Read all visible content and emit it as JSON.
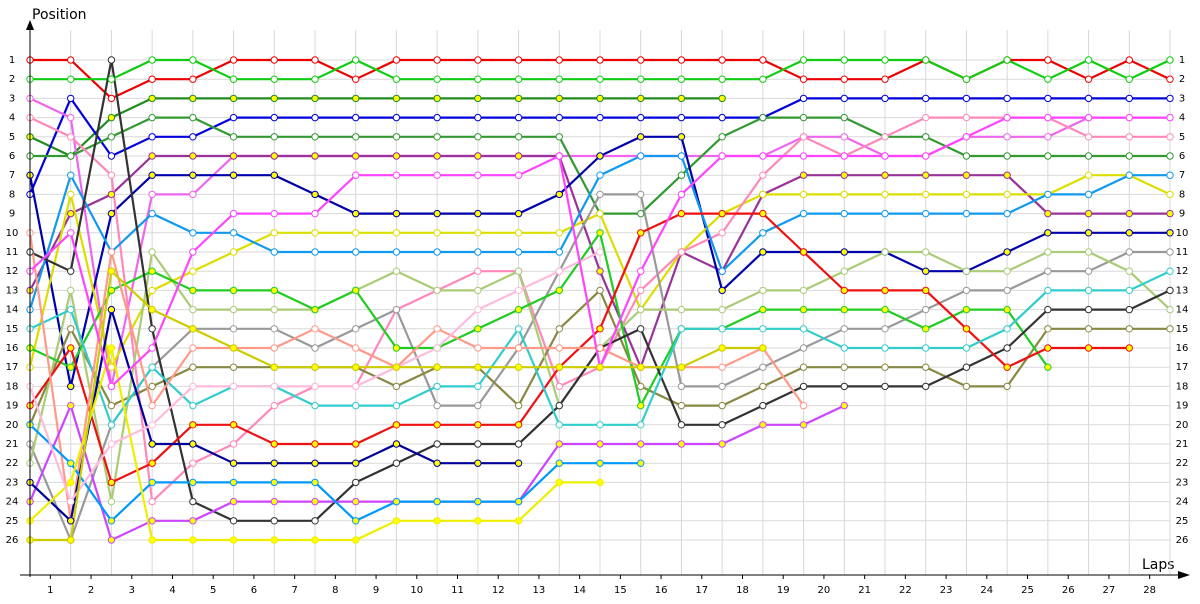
{
  "chart_data": {
    "type": "line",
    "y_label": "Position",
    "x_label": "Laps",
    "x": [
      0,
      1,
      2,
      3,
      4,
      5,
      6,
      7,
      8,
      9,
      10,
      11,
      12,
      13,
      14,
      15,
      16,
      17,
      18,
      19,
      20,
      21,
      22,
      23,
      24,
      25,
      26,
      27,
      28
    ],
    "xlim": [
      0,
      28
    ],
    "xticks": [
      1,
      2,
      3,
      4,
      5,
      6,
      7,
      8,
      9,
      10,
      11,
      12,
      13,
      14,
      15,
      16,
      17,
      18,
      19,
      20,
      21,
      22,
      23,
      24,
      25,
      26,
      27,
      28
    ],
    "ylim": [
      1,
      26
    ],
    "yticks": [
      1,
      2,
      3,
      4,
      5,
      6,
      7,
      8,
      9,
      10,
      11,
      12,
      13,
      14,
      15,
      16,
      17,
      18,
      19,
      20,
      21,
      22,
      23,
      24,
      25,
      26
    ],
    "y_inverted": true,
    "grid": true,
    "series": [
      {
        "color": "#ee0000",
        "marker": "#ffffff",
        "values": [
          1,
          1,
          3,
          2,
          2,
          1,
          1,
          1,
          2,
          1,
          1,
          1,
          1,
          1,
          1,
          1,
          1,
          1,
          1,
          2,
          2,
          2,
          1,
          2,
          1,
          1,
          2,
          1,
          2
        ]
      },
      {
        "color": "#11cc11",
        "marker": "#ffffff",
        "values": [
          2,
          2,
          2,
          1,
          1,
          2,
          2,
          2,
          1,
          2,
          2,
          2,
          2,
          2,
          2,
          2,
          2,
          2,
          2,
          1,
          1,
          1,
          1,
          2,
          1,
          2,
          1,
          2,
          1
        ]
      },
      {
        "color": "#228b22",
        "marker": "#ffff00",
        "values": [
          5,
          6,
          4,
          3,
          3,
          3,
          3,
          3,
          3,
          3,
          3,
          3,
          3,
          3,
          3,
          3,
          3,
          3,
          null,
          null,
          null,
          null,
          null,
          null,
          null,
          null,
          null,
          null,
          null
        ]
      },
      {
        "color": "#0000dd",
        "marker": "#ffffff",
        "values": [
          8,
          3,
          6,
          5,
          5,
          4,
          4,
          4,
          4,
          4,
          4,
          4,
          4,
          4,
          4,
          4,
          4,
          4,
          4,
          3,
          3,
          3,
          3,
          3,
          3,
          3,
          3,
          3,
          3
        ]
      },
      {
        "color": "#ee66ee",
        "marker": "#ffffff",
        "values": [
          3,
          4,
          18,
          8,
          8,
          6,
          6,
          6,
          6,
          6,
          6,
          6,
          6,
          6,
          6,
          6,
          6,
          6,
          6,
          5,
          5,
          6,
          6,
          5,
          5,
          5,
          4,
          4,
          4
        ]
      },
      {
        "color": "#339933",
        "marker": "#ffffff",
        "values": [
          6,
          6,
          5,
          4,
          4,
          5,
          5,
          5,
          5,
          5,
          5,
          5,
          5,
          5,
          9,
          9,
          7,
          5,
          4,
          4,
          4,
          5,
          5,
          6,
          6,
          6,
          6,
          6,
          6
        ]
      },
      {
        "color": "#993399",
        "marker": "#ffff00",
        "values": [
          13,
          9,
          8,
          6,
          6,
          6,
          6,
          6,
          6,
          6,
          6,
          6,
          6,
          6,
          12,
          17,
          11,
          12,
          8,
          7,
          7,
          7,
          7,
          7,
          7,
          9,
          9,
          9,
          9
        ]
      },
      {
        "color": "#0000aa",
        "marker": "#ffff00",
        "values": [
          7,
          18,
          9,
          7,
          7,
          7,
          7,
          8,
          9,
          9,
          9,
          9,
          9,
          8,
          6,
          5,
          5,
          13,
          11,
          11,
          11,
          11,
          12,
          12,
          11,
          10,
          10,
          10,
          10
        ]
      },
      {
        "color": "#dddd00",
        "marker": "#ffffff",
        "values": [
          17,
          8,
          17,
          13,
          12,
          11,
          10,
          10,
          10,
          10,
          10,
          10,
          10,
          10,
          9,
          14,
          11,
          9,
          8,
          8,
          8,
          8,
          8,
          8,
          8,
          8,
          7,
          7,
          8
        ]
      },
      {
        "color": "#ff88bb",
        "marker": "#ffffff",
        "values": [
          4,
          5,
          7,
          24,
          22,
          21,
          19,
          18,
          18,
          14,
          13,
          12,
          12,
          18,
          17,
          13,
          11,
          10,
          7,
          5,
          6,
          5,
          4,
          4,
          4,
          4,
          5,
          5,
          5
        ]
      },
      {
        "color": "#1199ee",
        "marker": "#ffffff",
        "values": [
          14,
          7,
          11,
          9,
          10,
          10,
          11,
          11,
          11,
          11,
          11,
          11,
          11,
          11,
          7,
          6,
          6,
          12,
          10,
          9,
          9,
          9,
          9,
          9,
          9,
          8,
          8,
          7,
          7
        ]
      },
      {
        "color": "#999999",
        "marker": "#ffffff",
        "values": [
          21,
          26,
          20,
          17,
          15,
          15,
          15,
          16,
          15,
          14,
          19,
          19,
          16,
          12,
          8,
          8,
          18,
          18,
          17,
          16,
          15,
          15,
          14,
          13,
          13,
          12,
          12,
          11,
          11
        ]
      },
      {
        "color": "#888844",
        "marker": "#ffffff",
        "values": [
          20,
          15,
          19,
          18,
          17,
          17,
          17,
          17,
          17,
          18,
          17,
          17,
          19,
          15,
          13,
          18,
          19,
          19,
          18,
          17,
          17,
          17,
          17,
          18,
          18,
          15,
          15,
          15,
          15
        ]
      },
      {
        "color": "#aacc77",
        "marker": "#ffffff",
        "values": [
          22,
          13,
          24,
          11,
          14,
          14,
          14,
          14,
          13,
          12,
          13,
          13,
          12,
          19,
          16,
          14,
          14,
          14,
          13,
          13,
          12,
          11,
          11,
          12,
          12,
          11,
          11,
          12,
          14
        ]
      },
      {
        "color": "#22cc22",
        "marker": "#ffff00",
        "values": [
          16,
          17,
          13,
          12,
          13,
          13,
          13,
          14,
          13,
          16,
          16,
          15,
          14,
          13,
          10,
          19,
          15,
          15,
          14,
          14,
          14,
          14,
          15,
          14,
          14,
          17,
          null,
          null,
          null
        ]
      },
      {
        "color": "#333333",
        "marker": "#ffffff",
        "values": [
          11,
          12,
          1,
          15,
          24,
          25,
          25,
          25,
          23,
          22,
          21,
          21,
          21,
          19,
          16,
          15,
          20,
          20,
          19,
          18,
          18,
          18,
          18,
          17,
          16,
          14,
          14,
          14,
          13
        ]
      },
      {
        "color": "#ee1111",
        "marker": "#ffff00",
        "values": [
          19,
          16,
          23,
          22,
          20,
          20,
          21,
          21,
          21,
          20,
          20,
          20,
          20,
          17,
          15,
          10,
          9,
          9,
          9,
          11,
          13,
          13,
          13,
          15,
          17,
          16,
          16,
          16,
          null
        ]
      },
      {
        "color": "#33cccc",
        "marker": "#ffffff",
        "values": [
          15,
          14,
          20,
          17,
          19,
          18,
          18,
          19,
          19,
          19,
          18,
          18,
          15,
          20,
          20,
          20,
          15,
          15,
          15,
          15,
          16,
          16,
          16,
          16,
          15,
          13,
          13,
          13,
          12
        ]
      },
      {
        "color": "#ff9988",
        "marker": "#ffffff",
        "values": [
          10,
          25,
          11,
          19,
          16,
          16,
          16,
          15,
          16,
          17,
          15,
          16,
          16,
          16,
          16,
          17,
          17,
          17,
          16,
          19,
          null,
          null,
          null,
          null,
          null,
          null,
          null,
          null,
          null
        ]
      },
      {
        "color": "#cc44ff",
        "marker": "#ffff00",
        "values": [
          24,
          19,
          26,
          25,
          25,
          24,
          24,
          24,
          24,
          24,
          24,
          24,
          24,
          21,
          21,
          21,
          21,
          21,
          20,
          20,
          19,
          null,
          null,
          null,
          null,
          null,
          null,
          null,
          null
        ]
      },
      {
        "color": "#000099",
        "marker": "#ffff00",
        "values": [
          23,
          25,
          14,
          21,
          21,
          22,
          22,
          22,
          22,
          21,
          22,
          22,
          22,
          null,
          null,
          null,
          null,
          null,
          null,
          null,
          null,
          null,
          null,
          null,
          null,
          null,
          null,
          null,
          null
        ]
      },
      {
        "color": "#0099ff",
        "marker": "#ffff00",
        "values": [
          20,
          22,
          25,
          23,
          23,
          23,
          23,
          23,
          25,
          24,
          24,
          24,
          24,
          22,
          22,
          22,
          null,
          null,
          null,
          null,
          null,
          null,
          null,
          null,
          null,
          null,
          null,
          null,
          null
        ]
      },
      {
        "color": "#eeee00",
        "marker": "#ffff00",
        "values": [
          25,
          23,
          16,
          26,
          26,
          26,
          26,
          26,
          26,
          25,
          25,
          25,
          25,
          23,
          23,
          null,
          null,
          null,
          null,
          null,
          null,
          null,
          null,
          null,
          null,
          null,
          null,
          null,
          null
        ]
      },
      {
        "color": "#ffbbdd",
        "marker": "#ffffff",
        "values": [
          18,
          24,
          21,
          20,
          18,
          18,
          18,
          18,
          18,
          17,
          16,
          14,
          13,
          12,
          11,
          null,
          null,
          null,
          null,
          null,
          null,
          null,
          null,
          null,
          null,
          null,
          null,
          null,
          null
        ]
      },
      {
        "color": "#ff44ff",
        "marker": "#ffffff",
        "values": [
          12,
          10,
          18,
          16,
          11,
          9,
          9,
          9,
          7,
          7,
          7,
          7,
          7,
          6,
          17,
          12,
          8,
          6,
          6,
          6,
          6,
          6,
          6,
          5,
          4,
          4,
          4,
          4,
          4
        ]
      },
      {
        "color": "#cccc00",
        "marker": "#ffff00",
        "values": [
          26,
          26,
          12,
          14,
          15,
          16,
          17,
          17,
          17,
          17,
          17,
          17,
          17,
          17,
          17,
          17,
          17,
          16,
          16,
          null,
          null,
          null,
          null,
          null,
          null,
          null,
          null,
          null,
          null
        ]
      }
    ]
  }
}
